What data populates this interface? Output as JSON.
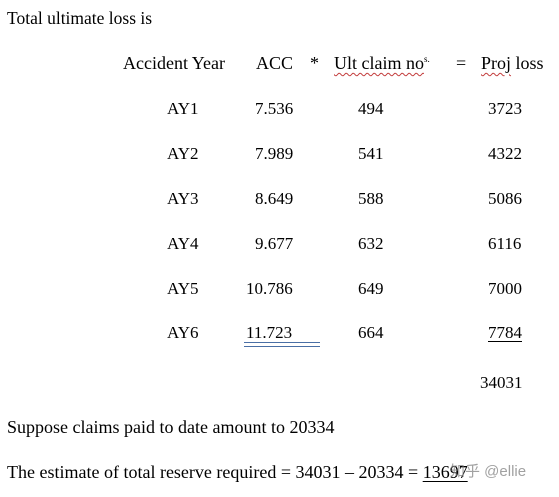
{
  "intro": "Total ultimate loss is",
  "headers": {
    "accident_year": "Accident Year",
    "acc": "ACC",
    "times": "*",
    "ult_claim": "Ult claim no",
    "ult_claim_sup": "s.",
    "equals": "=",
    "proj": "Proj",
    "loss": "loss"
  },
  "rows": [
    {
      "ay": "AY1",
      "acc": "7.536",
      "ult": "494",
      "proj": "3723"
    },
    {
      "ay": "AY2",
      "acc": "7.989",
      "ult": "541",
      "proj": "4322"
    },
    {
      "ay": "AY3",
      "acc": "8.649",
      "ult": "588",
      "proj": "5086"
    },
    {
      "ay": "AY4",
      "acc": "9.677",
      "ult": "632",
      "proj": "6116"
    },
    {
      "ay": "AY5",
      "acc": "10.786",
      "ult": "649",
      "proj": "7000"
    },
    {
      "ay": "AY6",
      "acc": "11.723",
      "ult": "664",
      "proj": "7784"
    }
  ],
  "total": "34031",
  "suppose_text": "Suppose claims paid to date amount to 20334",
  "estimate_text": "The estimate of total reserve required = 34031 – 20334 =",
  "estimate_result": "13697",
  "watermark": "知乎 @ellie"
}
